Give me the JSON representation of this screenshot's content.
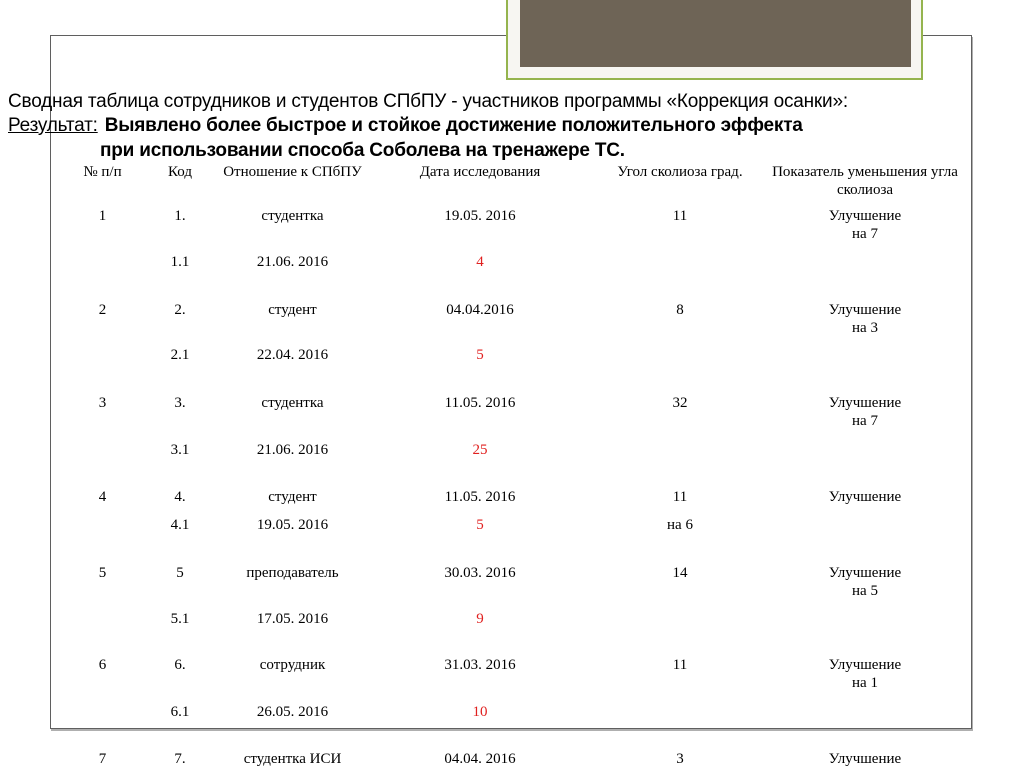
{
  "colors": {
    "banner_fill": "#6e6456",
    "banner_border": "#95b44e",
    "box_border": "#5f5f5f",
    "highlight": "#e0201f"
  },
  "title": "Сводная таблица сотрудников и студентов СПбПУ - участников программы «Коррекция осанки»:",
  "result": {
    "label": "Результат:",
    "line1": "Выявлено более быстрое и стойкое достижение положительного эффекта",
    "line2": "при использовании способа Соболева на тренажере ТС."
  },
  "table": {
    "headers": [
      "№ п/п",
      "Код",
      "Отношение к СПбПУ",
      "Дата исследования",
      "Угол сколиоза град.",
      "Показатель уменьшения угла сколиоза"
    ],
    "records": [
      {
        "num": "1",
        "code": "1.",
        "relation": "студентка",
        "date": "19.05. 2016",
        "angle": "11",
        "result": "Улучшение",
        "result2": "на 7",
        "sub": {
          "code": "1.1",
          "date": "21.06. 2016",
          "value": "4",
          "angle_note": ""
        }
      },
      {
        "num": "2",
        "code": "2.",
        "relation": "студент",
        "date": "04.04.2016",
        "angle": "8",
        "result": "Улучшение",
        "result2": "на 3",
        "sub": {
          "code": "2.1",
          "date": "22.04. 2016",
          "value": "5",
          "angle_note": ""
        }
      },
      {
        "num": "3",
        "code": "3.",
        "relation": "студентка",
        "date": "11.05. 2016",
        "angle": "32",
        "result": "Улучшение",
        "result2": "на 7",
        "sub": {
          "code": "3.1",
          "date": "21.06. 2016",
          "value": "25",
          "angle_note": ""
        }
      },
      {
        "num": "4",
        "code": "4.",
        "relation": "студент",
        "date": "11.05. 2016",
        "angle": "11",
        "result": "Улучшение",
        "result2": "",
        "sub": {
          "code": "4.1",
          "date": "19.05. 2016",
          "value": "5",
          "angle_note": "на 6"
        }
      },
      {
        "num": "5",
        "code": "5",
        "relation": "преподаватель",
        "date": "30.03. 2016",
        "angle": "14",
        "result": "Улучшение",
        "result2": "на 5",
        "sub": {
          "code": "5.1",
          "date": "17.05. 2016",
          "value": "9",
          "angle_note": ""
        }
      },
      {
        "num": "6",
        "code": "6.",
        "relation": "сотрудник",
        "date": "31.03. 2016",
        "angle": "11",
        "result": "Улучшение",
        "result2": "на 1",
        "sub": {
          "code": "6.1",
          "date": "26.05. 2016",
          "value": "10",
          "angle_note": ""
        }
      },
      {
        "num": "7",
        "code": "7.",
        "relation": "студентка ИСИ",
        "date": "04.04. 2016",
        "angle": "3",
        "result": "Улучшение",
        "result2": "",
        "sub": null
      }
    ]
  }
}
